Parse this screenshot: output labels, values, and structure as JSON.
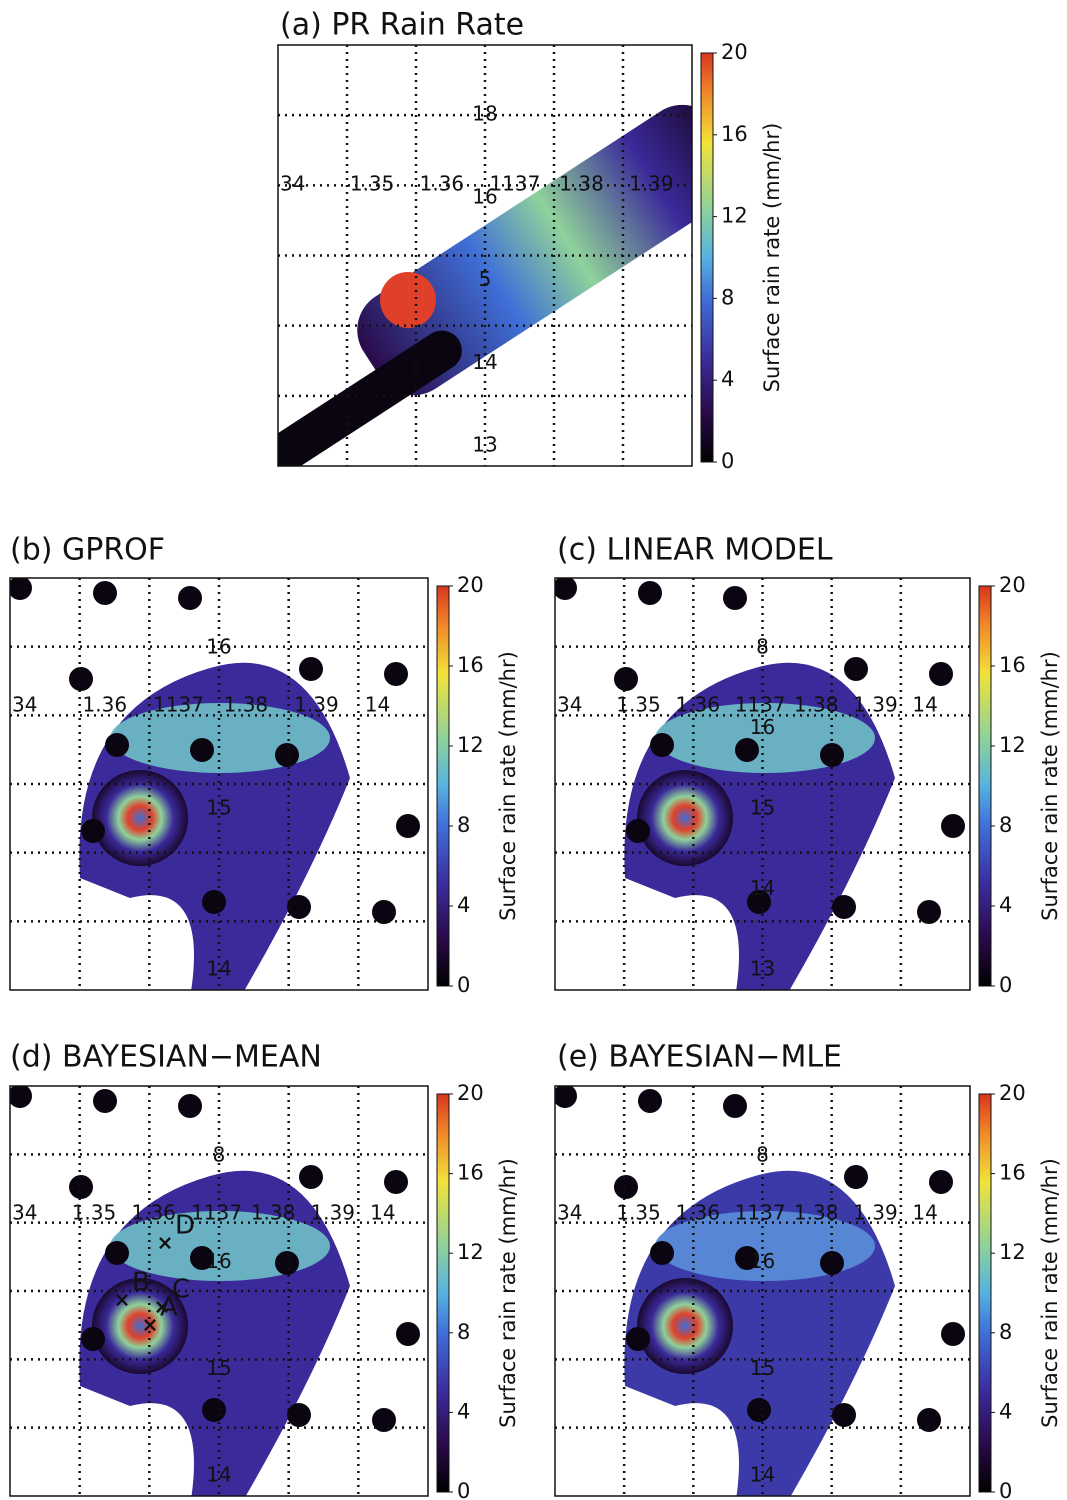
{
  "panels": [
    {
      "title": "(a) PR Rain Rate",
      "colorbar": {
        "label": "Surface rain rate (mm/hr)",
        "lim": [
          0,
          20
        ],
        "ticks": [
          0,
          4,
          8,
          12,
          16,
          20
        ]
      },
      "lon_labels": [
        "34",
        "1.35",
        "1.36",
        "1137",
        "1.38",
        "1.39"
      ],
      "lat_labels": [
        "18",
        "16",
        "5",
        "14",
        "13"
      ]
    },
    {
      "title": "(b) GPROF",
      "colorbar": {
        "label": "Surface rain rate (mm/hr)",
        "lim": [
          0,
          20
        ],
        "ticks": [
          0,
          4,
          8,
          12,
          16,
          20
        ]
      },
      "lon_labels": [
        "34",
        "1.36",
        "1137",
        "1.38",
        "1.39",
        "14"
      ],
      "lat_labels": [
        "16",
        "15",
        "14"
      ]
    },
    {
      "title": "(c) LINEAR MODEL",
      "colorbar": {
        "label": "Surface rain rate (mm/hr)",
        "lim": [
          0,
          20
        ],
        "ticks": [
          0,
          4,
          8,
          12,
          16,
          20
        ]
      },
      "lon_labels": [
        "34",
        "1.35",
        "1.36",
        "1137",
        "1.38",
        "1.39",
        "14"
      ],
      "lat_labels": [
        "8",
        "16",
        "15",
        "14",
        "13"
      ]
    },
    {
      "title": "(d) BAYESIAN−MEAN",
      "colorbar": {
        "label": "Surface rain rate (mm/hr)",
        "lim": [
          0,
          20
        ],
        "ticks": [
          0,
          4,
          8,
          12,
          16,
          20
        ]
      },
      "lon_labels": [
        "34",
        "1.35",
        "1.36",
        "1137",
        "1.38",
        "1.39",
        "14"
      ],
      "lat_labels": [
        "8",
        "16",
        "15",
        "14"
      ],
      "markers": [
        "A",
        "B",
        "C",
        "D"
      ]
    },
    {
      "title": "(e) BAYESIAN−MLE",
      "colorbar": {
        "label": "Surface rain rate (mm/hr)",
        "lim": [
          0,
          20
        ],
        "ticks": [
          0,
          4,
          8,
          12,
          16,
          20
        ]
      },
      "lon_labels": [
        "34",
        "1.35",
        "1.36",
        "1137",
        "1.38",
        "1.39",
        "14"
      ],
      "lat_labels": [
        "8",
        "16",
        "15",
        "14"
      ]
    }
  ]
}
